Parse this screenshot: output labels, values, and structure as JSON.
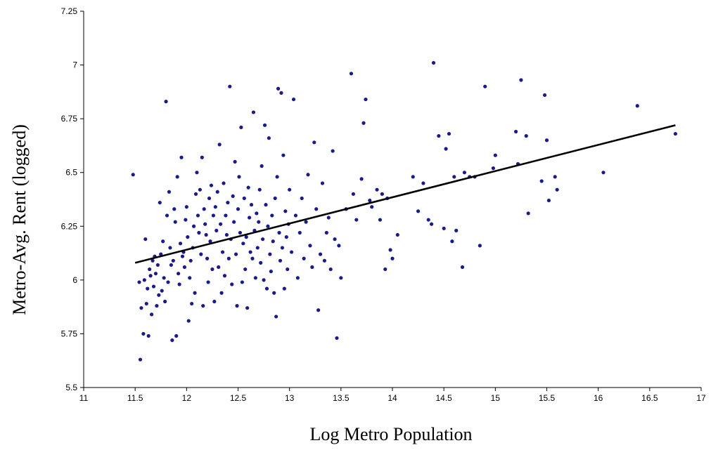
{
  "chart_data": {
    "type": "scatter",
    "title": "",
    "xlabel": "Log Metro Population",
    "ylabel": "Metro-Avg. Rent (logged)",
    "xlim": [
      11,
      17
    ],
    "ylim": [
      5.5,
      7.25
    ],
    "x_ticks": [
      "11",
      "11.5",
      "12",
      "12.5",
      "13",
      "13.5",
      "14",
      "14.5",
      "15",
      "15.5",
      "16",
      "16.5",
      "17"
    ],
    "y_ticks": [
      "5.5",
      "5.75",
      "6",
      "6.25",
      "6.5",
      "6.75",
      "7",
      "7.25"
    ],
    "grid": false,
    "legend": "none",
    "colors": {
      "points": "#1a1a8c",
      "trendline": "#000000",
      "axis": "#000000"
    },
    "trendline": {
      "type": "linear",
      "x": [
        11.5,
        16.75
      ],
      "y": [
        6.08,
        6.72
      ]
    },
    "series": [
      {
        "values": [
          [
            11.48,
            6.49
          ],
          [
            11.54,
            5.99
          ],
          [
            11.55,
            5.63
          ],
          [
            11.56,
            5.87
          ],
          [
            11.58,
            5.75
          ],
          [
            11.59,
            6.0
          ],
          [
            11.6,
            6.19
          ],
          [
            11.61,
            5.89
          ],
          [
            11.62,
            5.96
          ],
          [
            11.63,
            5.74
          ],
          [
            11.64,
            6.05
          ],
          [
            11.65,
            6.02
          ],
          [
            11.66,
            5.84
          ],
          [
            11.67,
            6.09
          ],
          [
            11.68,
            5.97
          ],
          [
            11.69,
            6.11
          ],
          [
            11.7,
            6.03
          ],
          [
            11.71,
            5.88
          ],
          [
            11.72,
            6.07
          ],
          [
            11.73,
            5.93
          ],
          [
            11.74,
            6.36
          ],
          [
            11.75,
            6.12
          ],
          [
            11.76,
            5.95
          ],
          [
            11.77,
            6.18
          ],
          [
            11.78,
            6.01
          ],
          [
            11.79,
            5.9
          ],
          [
            11.8,
            6.83
          ],
          [
            11.81,
            6.3
          ],
          [
            11.82,
            5.99
          ],
          [
            11.83,
            6.41
          ],
          [
            11.84,
            6.15
          ],
          [
            11.85,
            6.07
          ],
          [
            11.86,
            5.72
          ],
          [
            11.87,
            6.09
          ],
          [
            11.88,
            6.33
          ],
          [
            11.89,
            6.27
          ],
          [
            11.9,
            5.74
          ],
          [
            11.91,
            6.48
          ],
          [
            11.92,
            6.03
          ],
          [
            11.93,
            5.98
          ],
          [
            11.94,
            6.17
          ],
          [
            11.95,
            6.57
          ],
          [
            11.96,
            6.11
          ],
          [
            11.97,
            6.13
          ],
          [
            11.98,
            6.06
          ],
          [
            11.99,
            6.28
          ],
          [
            12.0,
            6.34
          ],
          [
            12.01,
            6.2
          ],
          [
            12.02,
            5.81
          ],
          [
            12.03,
            6.01
          ],
          [
            12.04,
            6.09
          ],
          [
            12.05,
            5.89
          ],
          [
            12.06,
            6.15
          ],
          [
            12.07,
            6.25
          ],
          [
            12.08,
            5.94
          ],
          [
            12.09,
            6.4
          ],
          [
            12.1,
            6.5
          ],
          [
            12.11,
            6.3
          ],
          [
            12.12,
            6.22
          ],
          [
            12.13,
            6.42
          ],
          [
            12.14,
            6.12
          ],
          [
            12.15,
            6.57
          ],
          [
            12.16,
            5.88
          ],
          [
            12.17,
            6.33
          ],
          [
            12.18,
            6.26
          ],
          [
            12.19,
            6.21
          ],
          [
            12.2,
            6.1
          ],
          [
            12.21,
            5.99
          ],
          [
            12.22,
            6.38
          ],
          [
            12.23,
            6.18
          ],
          [
            12.24,
            6.44
          ],
          [
            12.25,
            6.05
          ],
          [
            12.26,
            6.3
          ],
          [
            12.27,
            5.9
          ],
          [
            12.28,
            6.34
          ],
          [
            12.29,
            6.23
          ],
          [
            12.3,
            6.41
          ],
          [
            12.31,
            6.06
          ],
          [
            12.32,
            6.63
          ],
          [
            12.33,
            6.26
          ],
          [
            12.34,
            5.94
          ],
          [
            12.35,
            6.13
          ],
          [
            12.36,
            6.45
          ],
          [
            12.37,
            6.02
          ],
          [
            12.38,
            6.3
          ],
          [
            12.39,
            6.21
          ],
          [
            12.4,
            6.36
          ],
          [
            12.41,
            6.1
          ],
          [
            12.42,
            6.9
          ],
          [
            12.43,
            6.19
          ],
          [
            12.44,
            5.98
          ],
          [
            12.45,
            6.39
          ],
          [
            12.46,
            6.27
          ],
          [
            12.47,
            6.55
          ],
          [
            12.48,
            6.12
          ],
          [
            12.49,
            5.88
          ],
          [
            12.5,
            6.33
          ],
          [
            12.51,
            6.48
          ],
          [
            12.52,
            6.22
          ],
          [
            12.53,
            6.71
          ],
          [
            12.54,
            5.99
          ],
          [
            12.55,
            6.17
          ],
          [
            12.56,
            6.38
          ],
          [
            12.57,
            6.05
          ],
          [
            12.58,
            6.2
          ],
          [
            12.59,
            5.87
          ],
          [
            12.6,
            6.43
          ],
          [
            12.61,
            6.29
          ],
          [
            12.62,
            6.13
          ],
          [
            12.63,
            6.35
          ],
          [
            12.64,
            6.1
          ],
          [
            12.65,
            6.78
          ],
          [
            12.66,
            6.23
          ],
          [
            12.67,
            6.01
          ],
          [
            12.68,
            6.31
          ],
          [
            12.69,
            6.15
          ],
          [
            12.7,
            6.27
          ],
          [
            12.71,
            6.42
          ],
          [
            12.72,
            6.08
          ],
          [
            12.73,
            6.53
          ],
          [
            12.74,
            6.19
          ],
          [
            12.75,
            6.0
          ],
          [
            12.76,
            6.72
          ],
          [
            12.77,
            6.35
          ],
          [
            12.78,
            5.96
          ],
          [
            12.79,
            6.25
          ],
          [
            12.8,
            6.66
          ],
          [
            12.81,
            6.12
          ],
          [
            12.82,
            6.04
          ],
          [
            12.83,
            6.3
          ],
          [
            12.84,
            6.18
          ],
          [
            12.85,
            5.94
          ],
          [
            12.86,
            6.38
          ],
          [
            12.87,
            5.83
          ],
          [
            12.88,
            6.48
          ],
          [
            12.89,
            6.89
          ],
          [
            12.9,
            6.22
          ],
          [
            12.91,
            6.09
          ],
          [
            12.92,
            6.87
          ],
          [
            12.93,
            6.15
          ],
          [
            12.94,
            6.58
          ],
          [
            12.95,
            5.96
          ],
          [
            12.96,
            6.32
          ],
          [
            12.97,
            6.2
          ],
          [
            12.98,
            6.05
          ],
          [
            12.99,
            6.26
          ],
          [
            13.0,
            6.42
          ],
          [
            13.02,
            6.13
          ],
          [
            13.04,
            6.84
          ],
          [
            13.06,
            6.3
          ],
          [
            13.08,
            6.01
          ],
          [
            13.1,
            6.22
          ],
          [
            13.12,
            6.38
          ],
          [
            13.14,
            6.1
          ],
          [
            13.16,
            6.27
          ],
          [
            13.18,
            6.49
          ],
          [
            13.2,
            6.16
          ],
          [
            13.22,
            6.06
          ],
          [
            13.24,
            6.64
          ],
          [
            13.26,
            6.33
          ],
          [
            13.28,
            5.86
          ],
          [
            13.3,
            6.12
          ],
          [
            13.32,
            6.45
          ],
          [
            13.34,
            6.09
          ],
          [
            13.36,
            6.22
          ],
          [
            13.38,
            6.29
          ],
          [
            13.4,
            6.05
          ],
          [
            13.42,
            6.6
          ],
          [
            13.44,
            6.19
          ],
          [
            13.46,
            5.73
          ],
          [
            13.48,
            6.16
          ],
          [
            13.5,
            6.01
          ],
          [
            13.55,
            6.33
          ],
          [
            13.6,
            6.96
          ],
          [
            13.62,
            6.4
          ],
          [
            13.65,
            6.28
          ],
          [
            13.7,
            6.47
          ],
          [
            13.72,
            6.73
          ],
          [
            13.74,
            6.84
          ],
          [
            13.78,
            6.37
          ],
          [
            13.8,
            6.34
          ],
          [
            13.85,
            6.42
          ],
          [
            13.88,
            6.28
          ],
          [
            13.9,
            6.4
          ],
          [
            13.93,
            6.05
          ],
          [
            13.95,
            6.38
          ],
          [
            13.98,
            6.14
          ],
          [
            14.0,
            6.1
          ],
          [
            14.05,
            6.21
          ],
          [
            14.2,
            6.48
          ],
          [
            14.25,
            6.32
          ],
          [
            14.3,
            6.45
          ],
          [
            14.35,
            6.28
          ],
          [
            14.38,
            6.26
          ],
          [
            14.4,
            7.01
          ],
          [
            14.45,
            6.67
          ],
          [
            14.5,
            6.24
          ],
          [
            14.52,
            6.61
          ],
          [
            14.55,
            6.68
          ],
          [
            14.58,
            6.18
          ],
          [
            14.6,
            6.48
          ],
          [
            14.62,
            6.23
          ],
          [
            14.68,
            6.06
          ],
          [
            14.7,
            6.5
          ],
          [
            14.75,
            6.48
          ],
          [
            14.8,
            6.48
          ],
          [
            14.85,
            6.16
          ],
          [
            14.9,
            6.9
          ],
          [
            14.98,
            6.52
          ],
          [
            15.0,
            6.58
          ],
          [
            15.2,
            6.69
          ],
          [
            15.22,
            6.54
          ],
          [
            15.25,
            6.93
          ],
          [
            15.3,
            6.67
          ],
          [
            15.32,
            6.31
          ],
          [
            15.45,
            6.46
          ],
          [
            15.48,
            6.86
          ],
          [
            15.5,
            6.65
          ],
          [
            15.52,
            6.37
          ],
          [
            15.58,
            6.48
          ],
          [
            15.6,
            6.42
          ],
          [
            16.05,
            6.5
          ],
          [
            16.38,
            6.81
          ],
          [
            16.75,
            6.68
          ]
        ]
      }
    ]
  }
}
